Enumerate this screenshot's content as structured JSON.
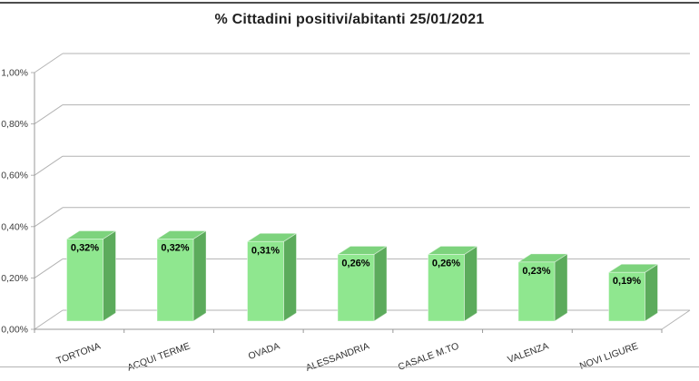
{
  "chart_data": {
    "type": "bar",
    "style": "3d-column",
    "title": "% Cittadini positivi/abitanti 25/01/2021",
    "categories": [
      "TORTONA",
      "ACQUI TERME",
      "OVADA",
      "ALESSANDRIA",
      "CASALE M.TO",
      "VALENZA",
      "NOVI LIGURE"
    ],
    "values": [
      0.32,
      0.32,
      0.31,
      0.26,
      0.26,
      0.23,
      0.19
    ],
    "data_labels": [
      "0,32%",
      "0,32%",
      "0,31%",
      "0,26%",
      "0,26%",
      "0,23%",
      "0,19%"
    ],
    "y_ticks": [
      "0,00%",
      "0,20%",
      "0,40%",
      "0,60%",
      "0,80%",
      "1,00%"
    ],
    "ylim": [
      0,
      1.0
    ],
    "y_tick_step": 0.2,
    "xlabel": "",
    "ylabel": "",
    "grid": true,
    "legend": false,
    "colors": {
      "bar_front": "#8fe78f",
      "bar_top": "#7dd37d",
      "bar_side": "#5cab5c",
      "bar_edge": "#ffffff",
      "gridline": "#b3b3b3",
      "axis": "#999999",
      "value_label": "#000000",
      "tick_label": "#3c3c3c",
      "category_label": "#2e2e2e",
      "title_text": "#1f1f1f"
    }
  }
}
